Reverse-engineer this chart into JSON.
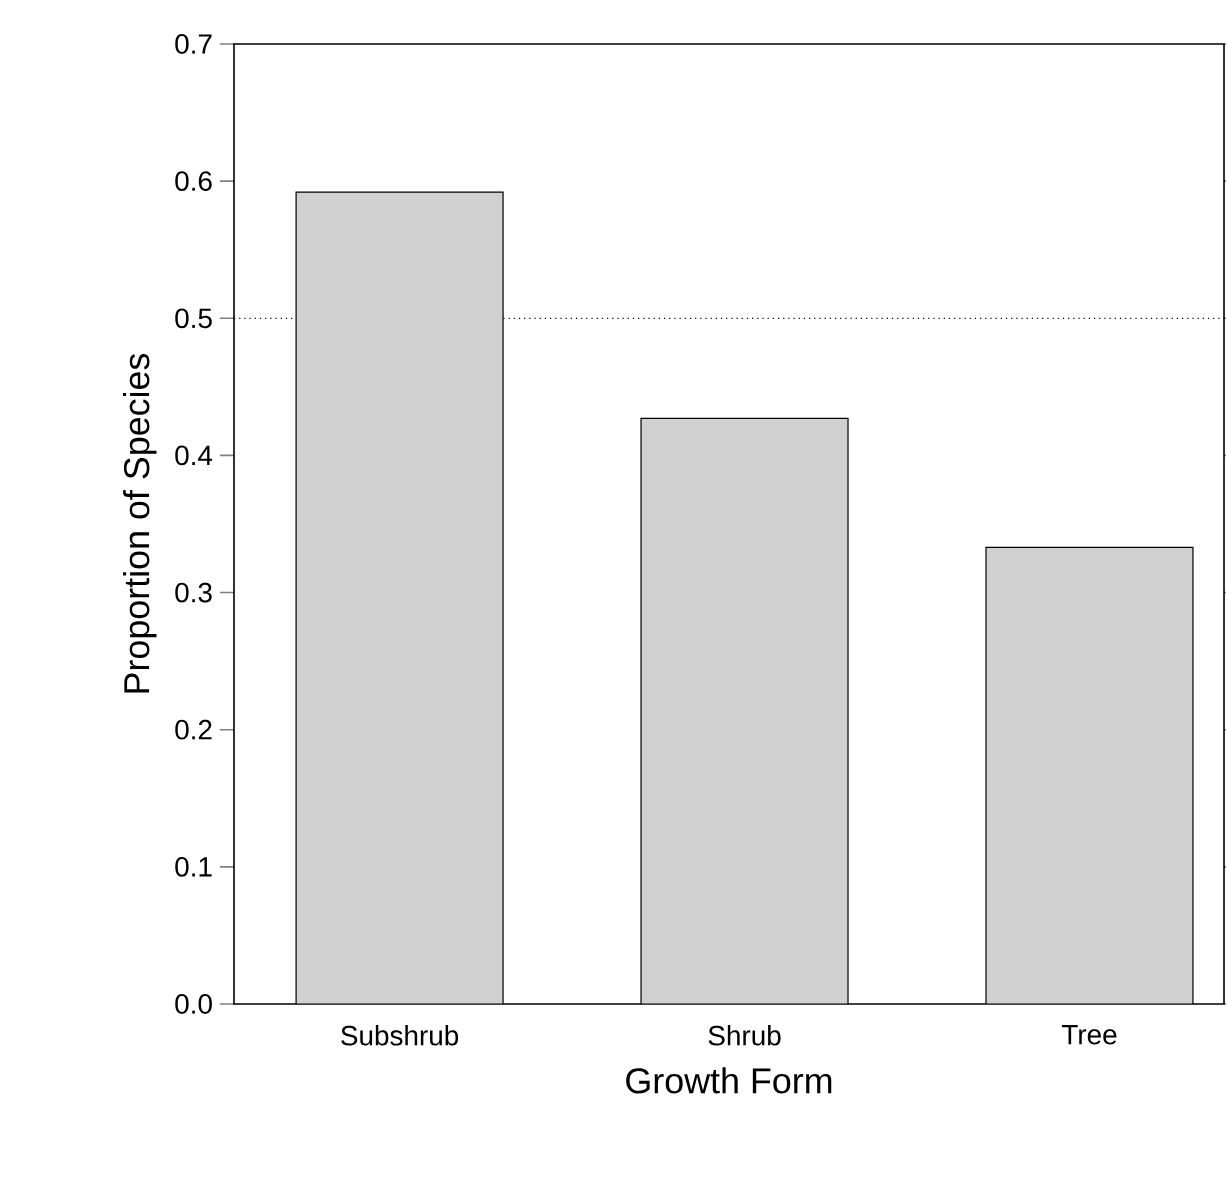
{
  "chart_data": {
    "type": "bar",
    "xlabel": "Growth Form",
    "ylabel": "Proportion of Species",
    "categories": [
      "Subshrub",
      "Shrub",
      "Tree"
    ],
    "values": [
      0.592,
      0.427,
      0.333
    ],
    "color": "#d0d0d0",
    "ylim": [
      0,
      0.7
    ],
    "yticks": [
      {
        "value": 0,
        "label": "0.0"
      },
      0.1,
      0.2,
      0.3,
      0.4,
      0.5,
      0.6,
      0.7
    ],
    "ref_lines": [
      {
        "axis": "y",
        "value": 0.5,
        "line_style": "dotted",
        "color": "#000000"
      }
    ]
  }
}
